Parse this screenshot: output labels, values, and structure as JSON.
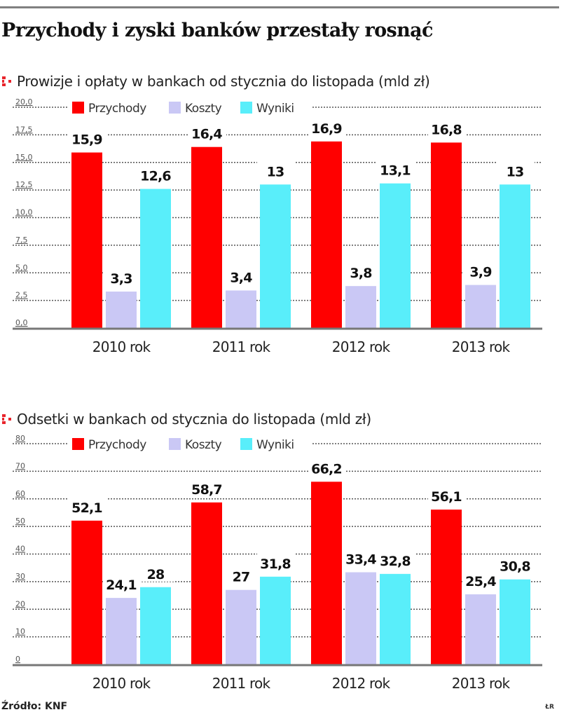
{
  "title": "Przychody i zyski banków przestały rosnąć",
  "legend": {
    "items": [
      {
        "label": "Przychody",
        "color": "#ff0000"
      },
      {
        "label": "Koszty",
        "color": "#cac8f5"
      },
      {
        "label": "Wyniki",
        "color": "#59eefa"
      }
    ]
  },
  "accent_color": "#e8242b",
  "footer": {
    "source": "Źródło: KNF",
    "author": "ŁR"
  },
  "chart_data": [
    {
      "type": "bar",
      "title": "Prowizje i opłaty w bankach od stycznia do listopada (mld zł)",
      "categories": [
        "2010 rok",
        "2011 rok",
        "2012 rok",
        "2013 rok"
      ],
      "series": [
        {
          "name": "Przychody",
          "values": [
            15.9,
            16.4,
            16.9,
            16.8
          ],
          "labels": [
            "15,9",
            "16,4",
            "16,9",
            "16,8"
          ]
        },
        {
          "name": "Koszty",
          "values": [
            3.3,
            3.4,
            3.8,
            3.9
          ],
          "labels": [
            "3,3",
            "3,4",
            "3,8",
            "3,9"
          ]
        },
        {
          "name": "Wyniki",
          "values": [
            12.6,
            13,
            13.1,
            13
          ],
          "labels": [
            "12,6",
            "13",
            "13,1",
            "13"
          ]
        }
      ],
      "ylim": [
        0,
        20
      ],
      "yticks": [
        "0,0",
        "2,5",
        "5,0",
        "7,5",
        "10,0",
        "12,5",
        "15,0",
        "17,5",
        "20,0"
      ],
      "ytick_values": [
        0,
        2.5,
        5,
        7.5,
        10,
        12.5,
        15,
        17.5,
        20
      ],
      "xlabel": "",
      "ylabel": "",
      "grid": true,
      "legend_position": "top"
    },
    {
      "type": "bar",
      "title": "Odsetki w bankach od stycznia do listopada (mld zł)",
      "categories": [
        "2010 rok",
        "2011 rok",
        "2012 rok",
        "2013 rok"
      ],
      "series": [
        {
          "name": "Przychody",
          "values": [
            52.1,
            58.7,
            66.2,
            56.1
          ],
          "labels": [
            "52,1",
            "58,7",
            "66,2",
            "56,1"
          ]
        },
        {
          "name": "Koszty",
          "values": [
            24.1,
            27,
            33.4,
            25.4
          ],
          "labels": [
            "24,1",
            "27",
            "33,4",
            "25,4"
          ]
        },
        {
          "name": "Wyniki",
          "values": [
            28,
            31.8,
            32.8,
            30.8
          ],
          "labels": [
            "28",
            "31,8",
            "32,8",
            "30,8"
          ]
        }
      ],
      "ylim": [
        0,
        80
      ],
      "yticks": [
        "0",
        "10",
        "20",
        "30",
        "40",
        "50",
        "60",
        "70",
        "80"
      ],
      "ytick_values": [
        0,
        10,
        20,
        30,
        40,
        50,
        60,
        70,
        80
      ],
      "xlabel": "",
      "ylabel": "",
      "grid": true,
      "legend_position": "top"
    }
  ]
}
